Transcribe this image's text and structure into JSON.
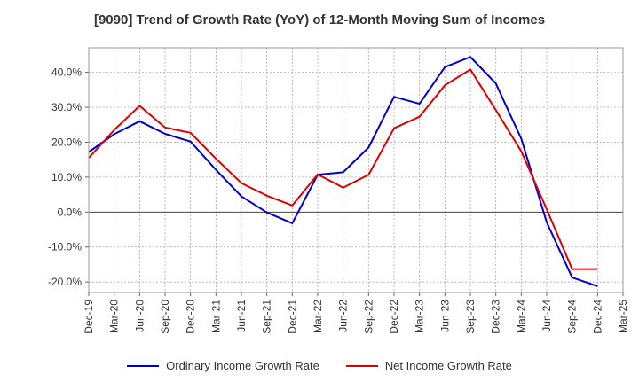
{
  "chart_data": {
    "type": "line",
    "title": "[9090]  Trend of Growth Rate (YoY) of 12-Month Moving Sum of Incomes",
    "xlabel": "",
    "ylabel": "",
    "categories": [
      "Dec-19",
      "Mar-20",
      "Jun-20",
      "Sep-20",
      "Dec-20",
      "Mar-21",
      "Jun-21",
      "Sep-21",
      "Dec-21",
      "Mar-22",
      "Jun-22",
      "Sep-22",
      "Dec-22",
      "Mar-23",
      "Jun-23",
      "Sep-23",
      "Dec-23",
      "Mar-24",
      "Jun-24",
      "Sep-24",
      "Dec-24",
      "Mar-25"
    ],
    "ylim": [
      -23,
      47
    ],
    "yticks": [
      -20,
      -10,
      0,
      10,
      20,
      30,
      40
    ],
    "ytick_labels": [
      "-20.0%",
      "-10.0%",
      "0.0%",
      "10.0%",
      "20.0%",
      "30.0%",
      "40.0%"
    ],
    "grid": true,
    "legend_position": "bottom",
    "series": [
      {
        "name": "Ordinary Income Growth Rate",
        "color": "#0000cc",
        "values": [
          17.2,
          22.3,
          26.0,
          22.4,
          20.2,
          12.1,
          4.5,
          -0.1,
          -3.2,
          10.7,
          11.4,
          18.5,
          33.0,
          31.0,
          41.5,
          44.4,
          36.8,
          21.0,
          -2.9,
          -18.7,
          -21.2,
          null
        ]
      },
      {
        "name": "Net Income Growth Rate",
        "color": "#dd0000",
        "values": [
          15.5,
          23.5,
          30.4,
          24.2,
          22.7,
          15.3,
          8.3,
          4.7,
          1.9,
          10.8,
          7.0,
          10.7,
          24.0,
          27.3,
          36.3,
          40.8,
          29.2,
          17.4,
          0.8,
          -16.3,
          -16.3,
          null
        ]
      }
    ]
  }
}
